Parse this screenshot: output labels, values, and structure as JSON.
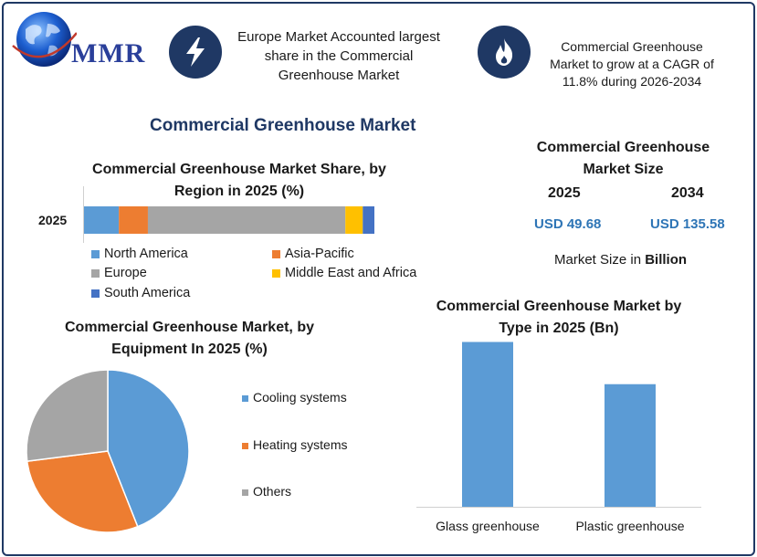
{
  "logo": {
    "text": "MMR"
  },
  "highlights": [
    {
      "icon": "lightning-icon",
      "text": "Europe Market Accounted largest share in the Commercial Greenhouse Market"
    },
    {
      "icon": "flame-icon",
      "text": "Commercial Greenhouse Market to grow at a CAGR of 11.8% during 2026-2034"
    }
  ],
  "main_title": "Commercial Greenhouse Market",
  "market_size": {
    "title": "Commercial Greenhouse Market Size",
    "year_a": "2025",
    "value_a": "USD 49.68",
    "year_b": "2034",
    "value_b": "USD 135.58",
    "unit_prefix": "Market Size in",
    "unit_bold": "Billion"
  },
  "colors": {
    "navy": "#1f3864",
    "blue": "#5b9bd5",
    "orange": "#ed7d31",
    "gray": "#a5a5a5",
    "yellow": "#ffc000",
    "darkblue": "#4472c4"
  },
  "chart_data": [
    {
      "type": "bar",
      "orientation": "horizontal-stacked",
      "title": "Commercial Greenhouse Market Share, by Region in 2025 (%)",
      "categories": [
        "2025"
      ],
      "xlim": [
        0,
        100
      ],
      "legend_position": "bottom",
      "series": [
        {
          "name": "North America",
          "color": "#5b9bd5",
          "values": [
            12
          ]
        },
        {
          "name": "Asia-Pacific",
          "color": "#ed7d31",
          "values": [
            10
          ]
        },
        {
          "name": "Europe",
          "color": "#a5a5a5",
          "values": [
            68
          ]
        },
        {
          "name": "Middle East and Africa",
          "color": "#ffc000",
          "values": [
            6
          ]
        },
        {
          "name": "South America",
          "color": "#4472c4",
          "values": [
            4
          ]
        }
      ]
    },
    {
      "type": "pie",
      "title": "Commercial Greenhouse Market, by Equipment In 2025 (%)",
      "legend_position": "right",
      "labels": [
        "Cooling systems",
        "Heating systems",
        "Others"
      ],
      "values": [
        44,
        29,
        27
      ],
      "colors": [
        "#5b9bd5",
        "#ed7d31",
        "#a5a5a5"
      ]
    },
    {
      "type": "bar",
      "title": "Commercial Greenhouse Market by Type in 2025 (Bn)",
      "categories": [
        "Glass greenhouse",
        "Plastic greenhouse"
      ],
      "values": [
        28.5,
        21.2
      ],
      "ylim": [
        0,
        30
      ],
      "color": "#5b9bd5",
      "grid": false
    }
  ]
}
